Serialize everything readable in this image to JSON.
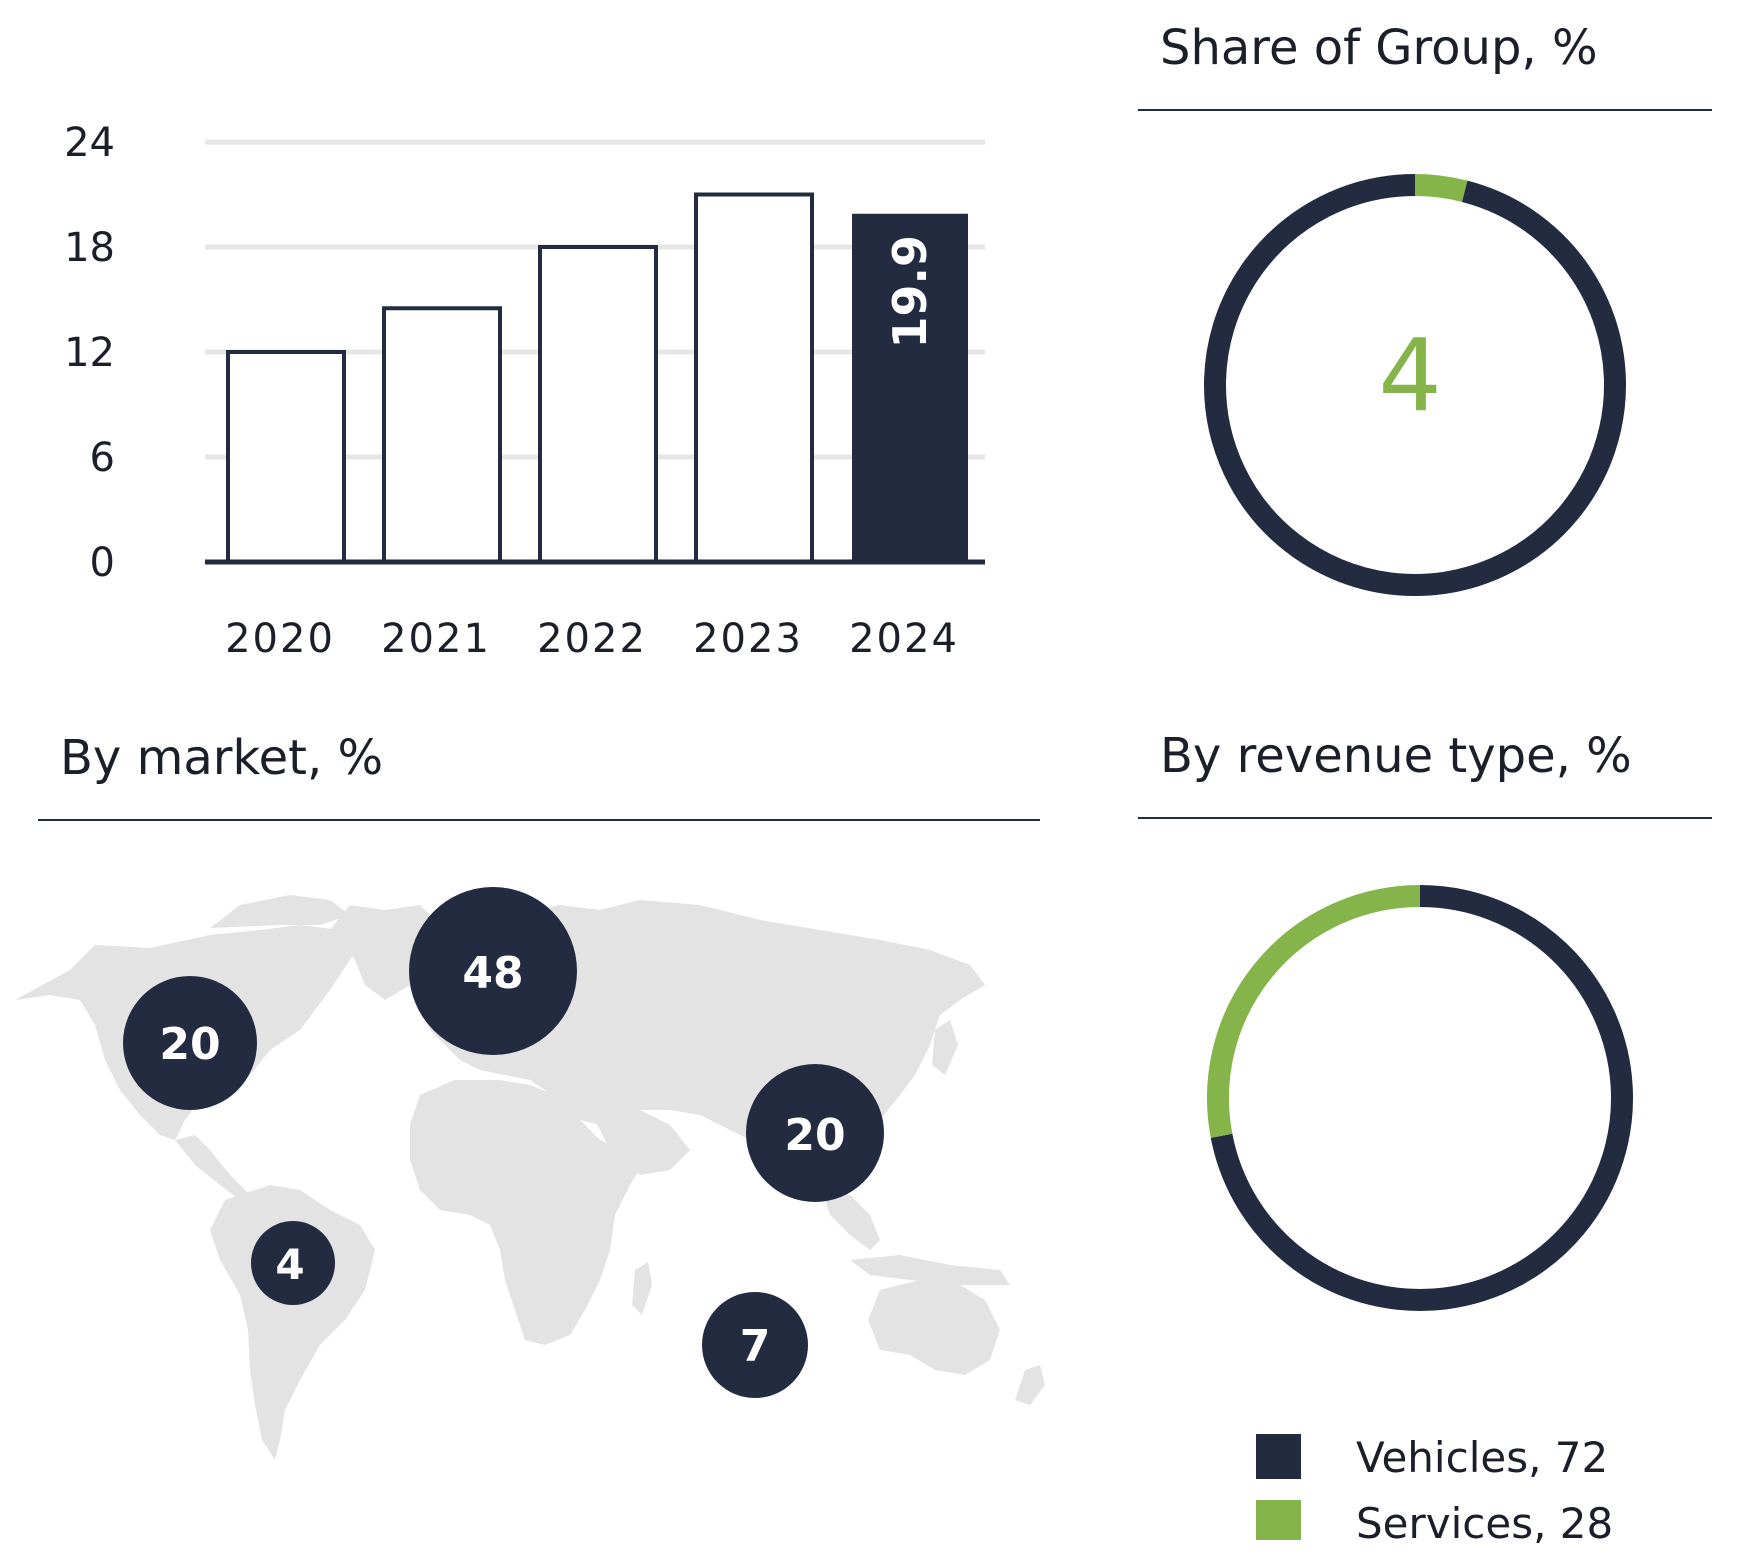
{
  "colors": {
    "navy": "#222b40",
    "green": "#85b54a",
    "map": "#e3e3e3",
    "grid": "#e6e6e6"
  },
  "chart_data": [
    {
      "type": "bar",
      "title": "",
      "categories": [
        "2020",
        "2021",
        "2022",
        "2023",
        "2024"
      ],
      "values": [
        12.0,
        14.5,
        18.0,
        21.0,
        19.9
      ],
      "highlight_index": 4,
      "data_label": "19.9",
      "yticks": [
        "0",
        "6",
        "12",
        "18",
        "24"
      ],
      "ylim": [
        0,
        24
      ],
      "grid": true
    },
    {
      "type": "pie",
      "title": "Share of Group, %",
      "center_label": "4",
      "slices": [
        {
          "value": 4,
          "color": "#85b54a"
        },
        {
          "value": 96,
          "color": "#222b40"
        }
      ]
    },
    {
      "type": "pie",
      "title": "By revenue type, %",
      "slices": [
        {
          "name": "Vehicles",
          "value": 72,
          "color": "#222b40"
        },
        {
          "name": "Services",
          "value": 28,
          "color": "#85b54a"
        }
      ],
      "legend": [
        "Vehicles, 72",
        "Services, 28"
      ]
    }
  ],
  "market": {
    "title": "By market, %",
    "bubbles": [
      {
        "region": "north-america",
        "value": "20"
      },
      {
        "region": "europe",
        "value": "48"
      },
      {
        "region": "asia",
        "value": "20"
      },
      {
        "region": "south-america",
        "value": "4"
      },
      {
        "region": "other",
        "value": "7"
      }
    ]
  }
}
